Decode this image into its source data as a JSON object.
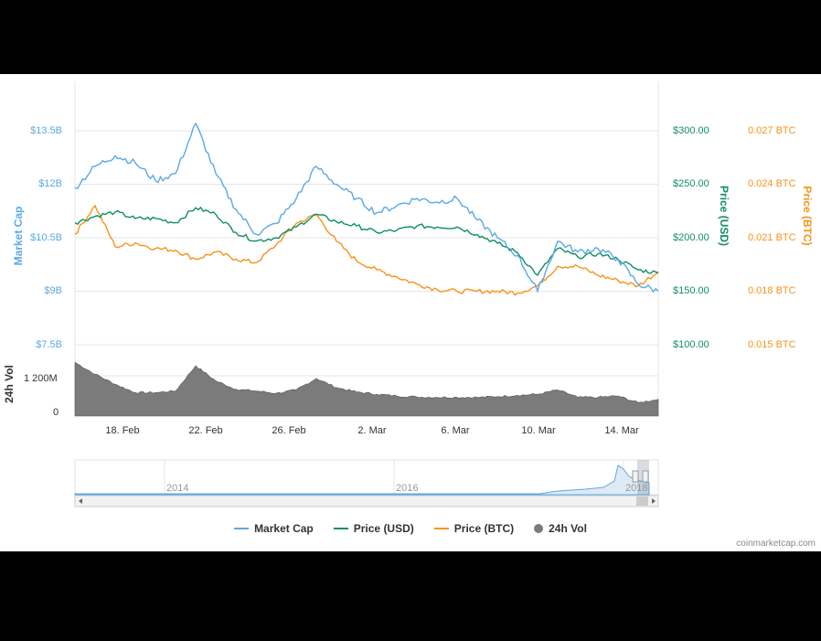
{
  "credits": "coinmarketcap.com",
  "colors": {
    "market_cap": "#5aa9e6",
    "price_usd": "#0f8f5e",
    "price_btc": "#f7931a",
    "volume": "#7b7b7b"
  },
  "axes": {
    "left_title": "Market Cap",
    "left_ticks": [
      "$13.5B",
      "$12B",
      "$10.5B",
      "$9B",
      "$7.5B"
    ],
    "usd_title": "Price (USD)",
    "usd_ticks": [
      "$300.00",
      "$250.00",
      "$200.00",
      "$150.00",
      "$100.00"
    ],
    "btc_title": "Price (BTC)",
    "btc_ticks": [
      "0.027 BTC",
      "0.024 BTC",
      "0.021 BTC",
      "0.018 BTC",
      "0.015 BTC"
    ],
    "vol_title": "24h Vol",
    "vol_ticks": [
      "1 200M",
      "0"
    ]
  },
  "x_ticks": [
    "18. Feb",
    "22. Feb",
    "26. Feb",
    "2. Mar",
    "6. Mar",
    "10. Mar",
    "14. Mar"
  ],
  "navigator": {
    "years": [
      "2014",
      "2016",
      "2018"
    ]
  },
  "legend": [
    {
      "label": "Market Cap",
      "kind": "line",
      "color": "#5aa9e6"
    },
    {
      "label": "Price (USD)",
      "kind": "line",
      "color": "#0f8f5e"
    },
    {
      "label": "Price (BTC)",
      "kind": "line",
      "color": "#f7931a"
    },
    {
      "label": "24h Vol",
      "kind": "dot",
      "color": "#7b7b7b"
    }
  ],
  "chart_data": {
    "type": "line",
    "x": [
      "15 Feb",
      "16 Feb",
      "17 Feb",
      "18 Feb",
      "19 Feb",
      "20 Feb",
      "21 Feb",
      "22 Feb",
      "23 Feb",
      "24 Feb",
      "25 Feb",
      "26 Feb",
      "27 Feb",
      "28 Feb",
      "1 Mar",
      "2 Mar",
      "3 Mar",
      "4 Mar",
      "5 Mar",
      "6 Mar",
      "7 Mar",
      "8 Mar",
      "9 Mar",
      "10 Mar",
      "11 Mar",
      "12 Mar",
      "13 Mar",
      "14 Mar",
      "15 Mar",
      "16 Mar"
    ],
    "series": [
      {
        "name": "Market Cap",
        "axis": "left",
        "unit": "B USD",
        "values": [
          11.9,
          12.5,
          12.8,
          12.6,
          12.1,
          12.3,
          13.7,
          12.3,
          11.3,
          10.6,
          10.9,
          11.6,
          12.5,
          12.0,
          11.6,
          11.2,
          11.4,
          11.6,
          11.5,
          11.6,
          11.0,
          10.5,
          10.0,
          9.0,
          10.4,
          10.1,
          10.2,
          9.9,
          9.2,
          9.0
        ]
      },
      {
        "name": "Price (USD)",
        "axis": "usd",
        "unit": "USD",
        "values": [
          214,
          220,
          224,
          218,
          218,
          214,
          228,
          222,
          205,
          197,
          200,
          210,
          222,
          215,
          211,
          205,
          207,
          211,
          210,
          210,
          203,
          195,
          186,
          165,
          190,
          182,
          185,
          180,
          170,
          167
        ]
      },
      {
        "name": "Price (BTC)",
        "axis": "btc",
        "unit": "BTC",
        "values": [
          0.0212,
          0.0228,
          0.0205,
          0.0207,
          0.0204,
          0.0203,
          0.0198,
          0.0202,
          0.0198,
          0.0196,
          0.0206,
          0.0218,
          0.0223,
          0.0208,
          0.0197,
          0.0192,
          0.0188,
          0.0184,
          0.0181,
          0.018,
          0.018,
          0.018,
          0.0179,
          0.0183,
          0.0194,
          0.0194,
          0.0189,
          0.0186,
          0.0183,
          0.0191
        ]
      },
      {
        "name": "24h Vol",
        "axis": "vol",
        "unit": "M USD",
        "values": [
          1600,
          1250,
          950,
          700,
          700,
          750,
          1500,
          1050,
          800,
          750,
          680,
          780,
          1120,
          850,
          720,
          650,
          600,
          570,
          560,
          560,
          560,
          580,
          620,
          650,
          780,
          560,
          560,
          600,
          400,
          500
        ]
      }
    ],
    "ylim_left": [
      7.5,
      13.5
    ],
    "ylim_usd": [
      100,
      300
    ],
    "ylim_btc": [
      0.015,
      0.027
    ],
    "ylim_vol": [
      0,
      1800
    ],
    "grid": true,
    "legend_position": "bottom"
  }
}
